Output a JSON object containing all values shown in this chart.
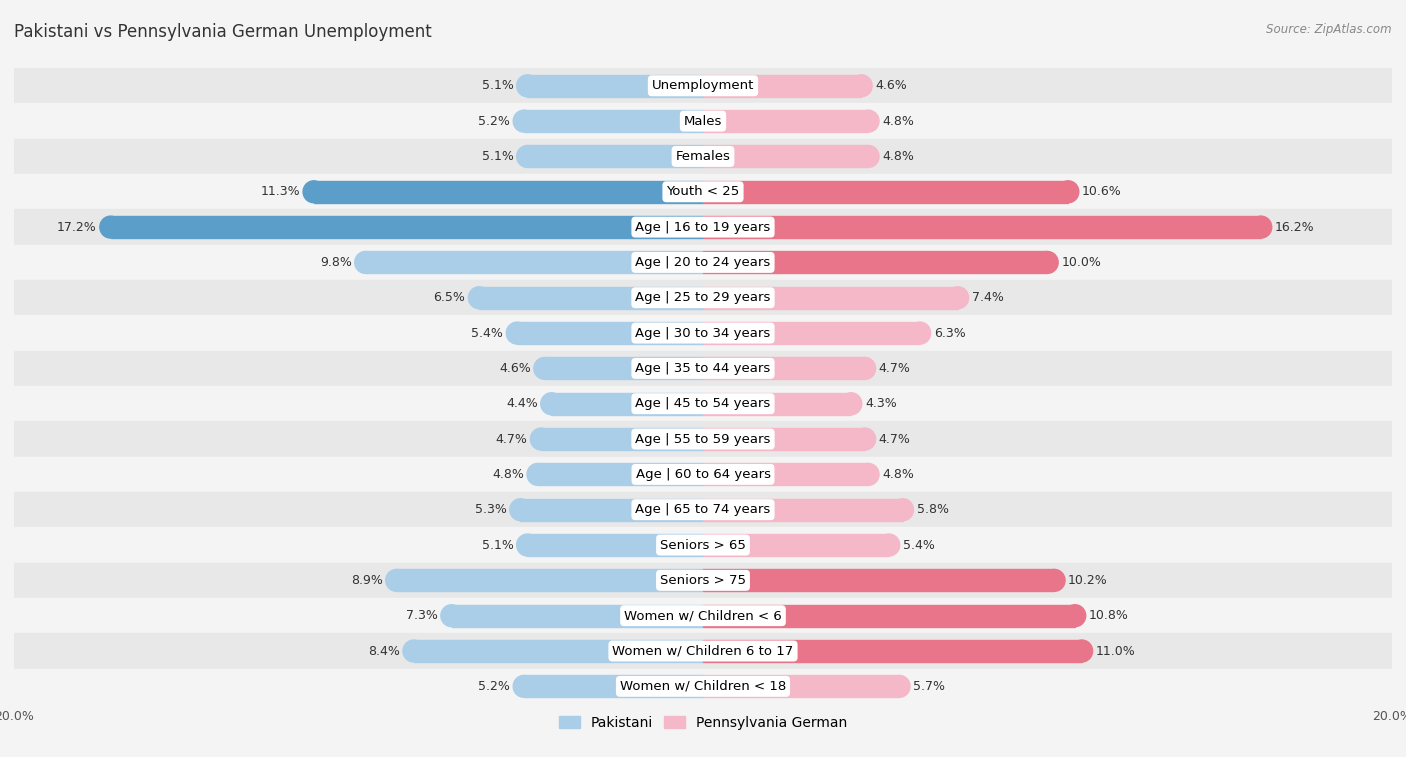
{
  "title": "Pakistani vs Pennsylvania German Unemployment",
  "source": "Source: ZipAtlas.com",
  "categories": [
    "Unemployment",
    "Males",
    "Females",
    "Youth < 25",
    "Age | 16 to 19 years",
    "Age | 20 to 24 years",
    "Age | 25 to 29 years",
    "Age | 30 to 34 years",
    "Age | 35 to 44 years",
    "Age | 45 to 54 years",
    "Age | 55 to 59 years",
    "Age | 60 to 64 years",
    "Age | 65 to 74 years",
    "Seniors > 65",
    "Seniors > 75",
    "Women w/ Children < 6",
    "Women w/ Children 6 to 17",
    "Women w/ Children < 18"
  ],
  "pakistani": [
    5.1,
    5.2,
    5.1,
    11.3,
    17.2,
    9.8,
    6.5,
    5.4,
    4.6,
    4.4,
    4.7,
    4.8,
    5.3,
    5.1,
    8.9,
    7.3,
    8.4,
    5.2
  ],
  "penn_german": [
    4.6,
    4.8,
    4.8,
    10.6,
    16.2,
    10.0,
    7.4,
    6.3,
    4.7,
    4.3,
    4.7,
    4.8,
    5.8,
    5.4,
    10.2,
    10.8,
    11.0,
    5.7
  ],
  "pakistani_color": "#aacde8",
  "penn_german_color": "#f4b8c8",
  "highlight_pakistani_color": "#5b9ec9",
  "highlight_penn_german_color": "#e8758a",
  "axis_max": 20.0,
  "bar_height": 0.62,
  "bg_color": "#f4f4f4",
  "row_color_even": "#e8e8e8",
  "row_color_odd": "#f4f4f4",
  "label_fontsize": 9.5,
  "title_fontsize": 12,
  "legend_fontsize": 10,
  "axis_label_fontsize": 9,
  "value_fontsize": 9
}
